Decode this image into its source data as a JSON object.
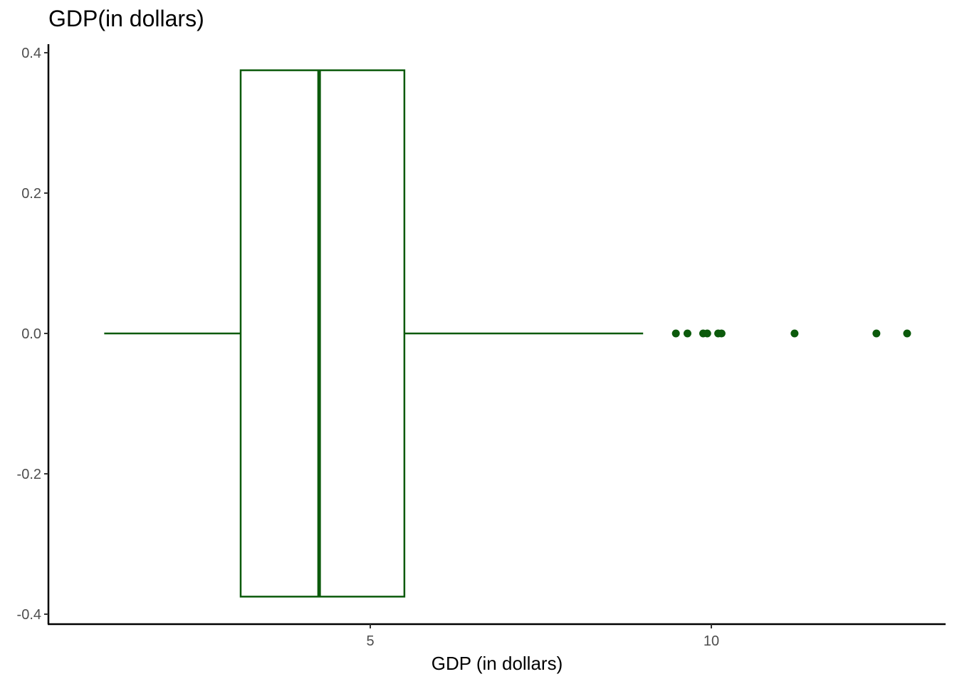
{
  "title": "GDP(in dollars)",
  "colors": {
    "box": "#0b5a0b",
    "axis": "#000000",
    "tick_text": "#4d4d4d"
  },
  "chart_data": {
    "type": "boxplot",
    "orientation": "horizontal",
    "title": "GDP(in dollars)",
    "xlabel": "GDP (in dollars)",
    "ylabel": "",
    "xlim": [
      0.5,
      13.5
    ],
    "ylim": [
      -0.41,
      0.41
    ],
    "x_ticks": [
      5,
      10
    ],
    "x_tick_labels": [
      "5",
      "10"
    ],
    "y_ticks": [
      0.4,
      0.2,
      0.0,
      -0.2,
      -0.4
    ],
    "y_tick_labels": [
      "0.4",
      "0.2",
      "0.0",
      "-0.2",
      "-0.4"
    ],
    "grid": false,
    "legend": "none",
    "box": {
      "y_center": 0.0,
      "y_half_height": 0.375,
      "whisker_low": 1.1,
      "q1": 3.1,
      "median": 4.25,
      "q3": 5.5,
      "whisker_high": 9.0
    },
    "outliers": [
      9.48,
      9.65,
      9.88,
      9.94,
      10.1,
      10.15,
      11.22,
      12.42,
      12.87
    ]
  }
}
